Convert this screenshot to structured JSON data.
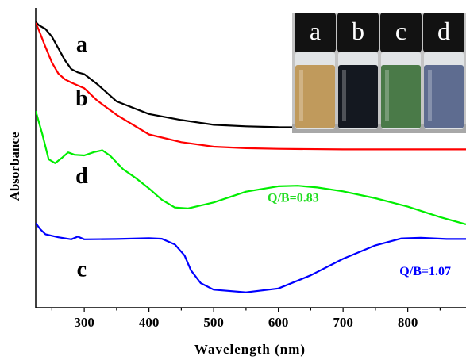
{
  "chart_data": {
    "type": "line",
    "title": "",
    "xlabel": "Wavelength (nm)",
    "ylabel": "Absorbance",
    "xlim": [
      225,
      890
    ],
    "ylim": [
      0,
      1
    ],
    "x_ticks": [
      300,
      400,
      500,
      600,
      700,
      800
    ],
    "y_ticks": [],
    "grid": false,
    "series": [
      {
        "name": "a",
        "color": "#000000",
        "points": [
          [
            225,
            0.953
          ],
          [
            230,
            0.942
          ],
          [
            240,
            0.93
          ],
          [
            250,
            0.904
          ],
          [
            260,
            0.865
          ],
          [
            270,
            0.826
          ],
          [
            280,
            0.796
          ],
          [
            290,
            0.785
          ],
          [
            300,
            0.779
          ],
          [
            320,
            0.746
          ],
          [
            350,
            0.688
          ],
          [
            400,
            0.646
          ],
          [
            450,
            0.626
          ],
          [
            500,
            0.61
          ],
          [
            550,
            0.605
          ],
          [
            600,
            0.602
          ],
          [
            700,
            0.601
          ],
          [
            800,
            0.6
          ],
          [
            890,
            0.599
          ]
        ]
      },
      {
        "name": "b",
        "color": "#ff0000",
        "points": [
          [
            225,
            0.95
          ],
          [
            230,
            0.925
          ],
          [
            240,
            0.87
          ],
          [
            250,
            0.818
          ],
          [
            260,
            0.781
          ],
          [
            270,
            0.762
          ],
          [
            280,
            0.751
          ],
          [
            300,
            0.732
          ],
          [
            320,
            0.691
          ],
          [
            350,
            0.643
          ],
          [
            400,
            0.578
          ],
          [
            450,
            0.552
          ],
          [
            500,
            0.537
          ],
          [
            550,
            0.532
          ],
          [
            600,
            0.53
          ],
          [
            700,
            0.528
          ],
          [
            800,
            0.528
          ],
          [
            890,
            0.528
          ]
        ]
      },
      {
        "name": "d",
        "color": "#00ee00",
        "points": [
          [
            225,
            0.656
          ],
          [
            235,
            0.58
          ],
          [
            245,
            0.495
          ],
          [
            255,
            0.482
          ],
          [
            265,
            0.499
          ],
          [
            275,
            0.518
          ],
          [
            285,
            0.51
          ],
          [
            300,
            0.508
          ],
          [
            315,
            0.519
          ],
          [
            328,
            0.525
          ],
          [
            340,
            0.507
          ],
          [
            360,
            0.462
          ],
          [
            380,
            0.432
          ],
          [
            400,
            0.398
          ],
          [
            420,
            0.36
          ],
          [
            440,
            0.334
          ],
          [
            460,
            0.331
          ],
          [
            500,
            0.351
          ],
          [
            550,
            0.387
          ],
          [
            600,
            0.405
          ],
          [
            630,
            0.407
          ],
          [
            660,
            0.401
          ],
          [
            700,
            0.388
          ],
          [
            750,
            0.365
          ],
          [
            800,
            0.337
          ],
          [
            850,
            0.302
          ],
          [
            890,
            0.278
          ]
        ]
      },
      {
        "name": "c",
        "color": "#0000ff",
        "points": [
          [
            225,
            0.282
          ],
          [
            232,
            0.262
          ],
          [
            240,
            0.245
          ],
          [
            260,
            0.235
          ],
          [
            280,
            0.228
          ],
          [
            290,
            0.237
          ],
          [
            300,
            0.228
          ],
          [
            350,
            0.229
          ],
          [
            400,
            0.232
          ],
          [
            420,
            0.23
          ],
          [
            440,
            0.211
          ],
          [
            455,
            0.174
          ],
          [
            465,
            0.124
          ],
          [
            480,
            0.082
          ],
          [
            500,
            0.06
          ],
          [
            550,
            0.051
          ],
          [
            600,
            0.064
          ],
          [
            650,
            0.108
          ],
          [
            700,
            0.163
          ],
          [
            750,
            0.208
          ],
          [
            790,
            0.231
          ],
          [
            820,
            0.233
          ],
          [
            860,
            0.229
          ],
          [
            890,
            0.229
          ]
        ]
      }
    ],
    "annotations": [
      {
        "text": "a",
        "x": 296,
        "y": 0.855,
        "color": "#000000"
      },
      {
        "text": "b",
        "x": 296,
        "y": 0.675,
        "color": "#000000"
      },
      {
        "text": "d",
        "x": 296,
        "y": 0.415,
        "color": "#000000"
      },
      {
        "text": "c",
        "x": 296,
        "y": 0.105,
        "color": "#000000"
      },
      {
        "text": "Q/B=0.83",
        "x": 623,
        "y": 0.353,
        "color": "#22dd22"
      },
      {
        "text": "Q/B=1.07",
        "x": 827,
        "y": 0.109,
        "color": "#0000ff"
      }
    ]
  },
  "inset": {
    "vials": [
      {
        "label": "a",
        "liquid_color": "#c09a5c"
      },
      {
        "label": "b",
        "liquid_color": "#141820"
      },
      {
        "label": "c",
        "liquid_color": "#4a7a48"
      },
      {
        "label": "d",
        "liquid_color": "#5e6c90"
      }
    ]
  }
}
